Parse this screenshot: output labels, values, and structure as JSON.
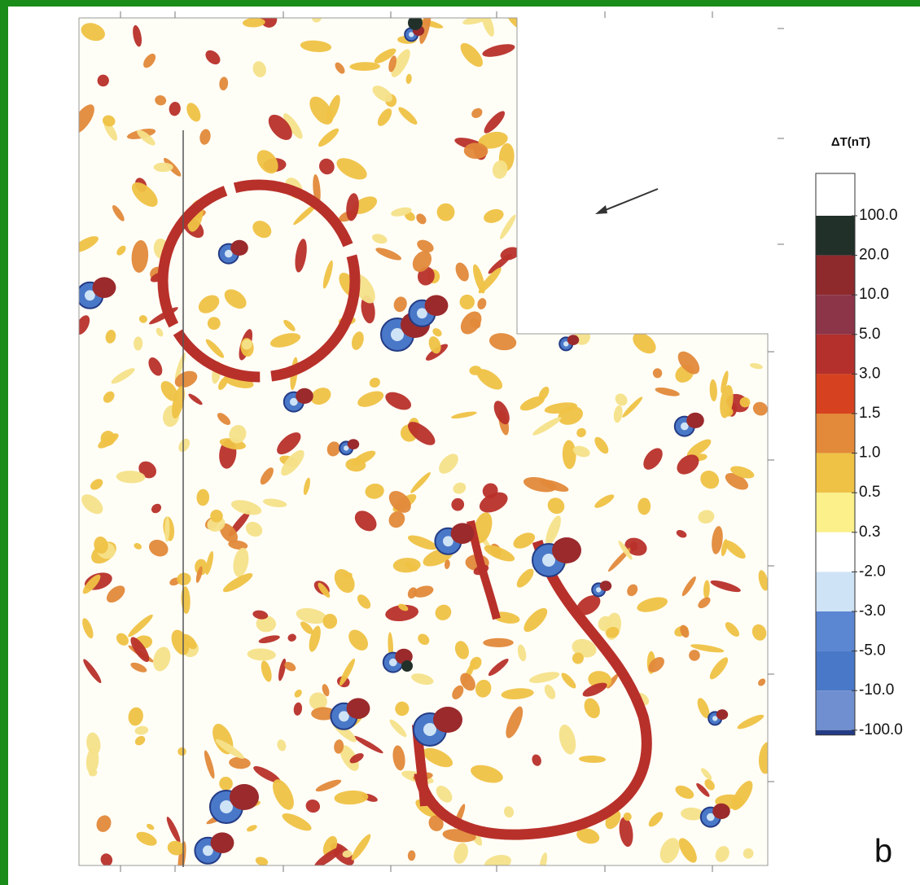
{
  "colorbar": {
    "title": "ΔT(nT)",
    "levels": [
      {
        "value": 100,
        "label": "100.0"
      },
      {
        "value": 20,
        "label": "20.0"
      },
      {
        "value": 10,
        "label": "10.0"
      },
      {
        "value": 5,
        "label": "5.0"
      },
      {
        "value": 3,
        "label": "3.0"
      },
      {
        "value": 1.5,
        "label": "1.5"
      },
      {
        "value": 1,
        "label": "1.0"
      },
      {
        "value": 0.5,
        "label": "0.5"
      },
      {
        "value": 0.3,
        "label": "0.3"
      },
      {
        "value": -2,
        "label": "-2.0"
      },
      {
        "value": -3,
        "label": "-3.0"
      },
      {
        "value": -5,
        "label": "-5.0"
      },
      {
        "value": -10,
        "label": "-10.0"
      },
      {
        "value": -100,
        "label": "-100.0"
      }
    ],
    "colors": [
      "#ffffff",
      "#22302a",
      "#8e2a2c",
      "#8c3448",
      "#b3302c",
      "#d6421f",
      "#e2893a",
      "#efc245",
      "#fbf08a",
      "#ffffff",
      "#cfe3f6",
      "#5b86d2",
      "#4a78c8",
      "#6f8fd0",
      "#243c86"
    ]
  },
  "panel_label": "b"
}
